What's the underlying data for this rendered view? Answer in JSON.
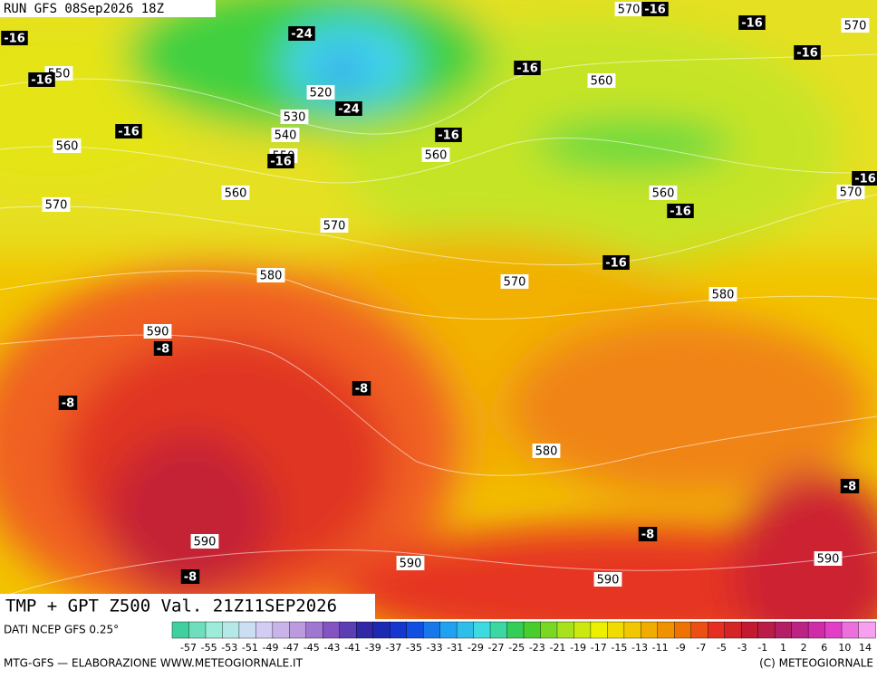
{
  "header": {
    "run": "RUN GFS 08Sep2026 18Z"
  },
  "map": {
    "temperature_labels": [
      "-16",
      "-24",
      "-16",
      "-24",
      "-16",
      "-16",
      "-16",
      "-16",
      "-16",
      "-16",
      "-16",
      "-16",
      "-16",
      "-16",
      "-8",
      "-8",
      "-8",
      "-8",
      "-8",
      "-8"
    ],
    "height_labels": [
      "570",
      "570",
      "550",
      "520",
      "560",
      "530",
      "540",
      "560",
      "550",
      "560",
      "560",
      "570",
      "560",
      "570",
      "570",
      "580",
      "570",
      "580",
      "590",
      "580",
      "590",
      "590",
      "590",
      "590"
    ]
  },
  "footer": {
    "title": "TMP + GPT Z500 Val. 21Z11SEP2026",
    "source": "DATI NCEP GFS 0.25°",
    "credit": "MTG-GFS — ELABORAZIONE WWW.METEOGIORNALE.IT",
    "copyright": "(C) METEOGIORNALE"
  },
  "legend": {
    "labels": [
      "-57",
      "-55",
      "-53",
      "-51",
      "-49",
      "-47",
      "-45",
      "-43",
      "-41",
      "-39",
      "-37",
      "-35",
      "-33",
      "-31",
      "-29",
      "-27",
      "-25",
      "-23",
      "-21",
      "-19",
      "-17",
      "-15",
      "-13",
      "-11",
      "-9",
      "-7",
      "-5",
      "-3",
      "-1",
      "1",
      "2",
      "6",
      "10",
      "14"
    ]
  }
}
